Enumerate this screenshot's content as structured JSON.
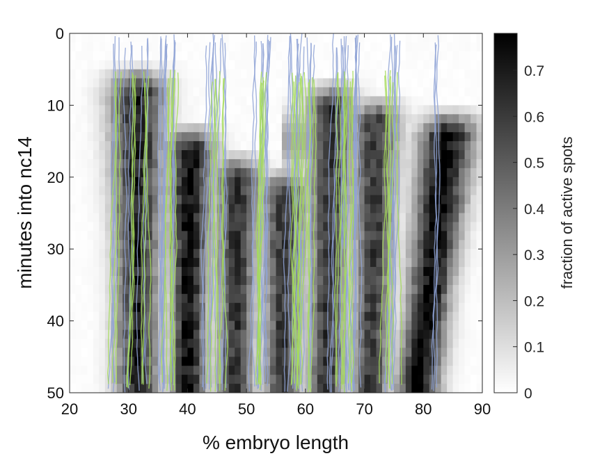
{
  "chart_data": {
    "type": "heatmap",
    "xlabel": "% embryo length",
    "ylabel": "minutes into nc14",
    "xlim": [
      20,
      90
    ],
    "ylim": [
      0,
      50
    ],
    "y_direction": "reversed",
    "xticks": [
      "20",
      "30",
      "40",
      "50",
      "60",
      "70",
      "80",
      "90"
    ],
    "yticks": [
      "0",
      "10",
      "20",
      "30",
      "40",
      "50"
    ],
    "colorbar": {
      "label": "fraction of active spots",
      "range": [
        0,
        0.78
      ],
      "ticks": [
        "0",
        "0.1",
        "0.2",
        "0.3",
        "0.4",
        "0.5",
        "0.6",
        "0.7"
      ],
      "colormap": "gray_reversed"
    },
    "heatmap_stripes": [
      {
        "stripe": 1,
        "x_center_start": 31.5,
        "x_center_end": 31.5,
        "t_start": 6,
        "t_end": 50,
        "width": 3.5,
        "peak": 0.68
      },
      {
        "stripe": 2,
        "x_center_start": 40.5,
        "x_center_end": 40.0,
        "t_start": 14,
        "t_end": 50,
        "width": 3.0,
        "peak": 0.72
      },
      {
        "stripe": 3,
        "x_center_start": 48.5,
        "x_center_end": 48.0,
        "t_start": 18,
        "t_end": 50,
        "width": 3.0,
        "peak": 0.62
      },
      {
        "stripe": 4,
        "x_center_start": 56.5,
        "x_center_end": 56.0,
        "t_start": 20,
        "t_end": 50,
        "width": 3.0,
        "peak": 0.6
      },
      {
        "stripe": 5,
        "x_center_start": 64.5,
        "x_center_end": 63.5,
        "t_start": 8,
        "t_end": 50,
        "width": 3.0,
        "peak": 0.62
      },
      {
        "stripe": 6,
        "x_center_start": 72.0,
        "x_center_end": 71.0,
        "t_start": 10,
        "t_end": 50,
        "width": 3.0,
        "peak": 0.6
      },
      {
        "stripe": 7,
        "x_center_start": 84.5,
        "x_center_end": 79.0,
        "t_start": 12,
        "t_end": 50,
        "width": 3.5,
        "peak": 0.76
      }
    ],
    "trace_series": [
      {
        "color": "#8fa3d6",
        "x_start": [
          28,
          30,
          33,
          36,
          37,
          38,
          44,
          45,
          46,
          52,
          53,
          54,
          58,
          59,
          60,
          61,
          65,
          66,
          67,
          68,
          69,
          75,
          76,
          82
        ],
        "t_start": 0,
        "t_end": 50,
        "drift": -0.5
      },
      {
        "color": "#a6dc5a",
        "x_start": [
          28,
          31,
          33,
          37,
          38,
          44,
          46,
          52,
          53,
          58,
          59,
          60,
          61,
          66,
          67,
          68,
          74,
          75
        ],
        "t_start": 5,
        "t_end": 50,
        "drift": -0.5
      }
    ]
  }
}
